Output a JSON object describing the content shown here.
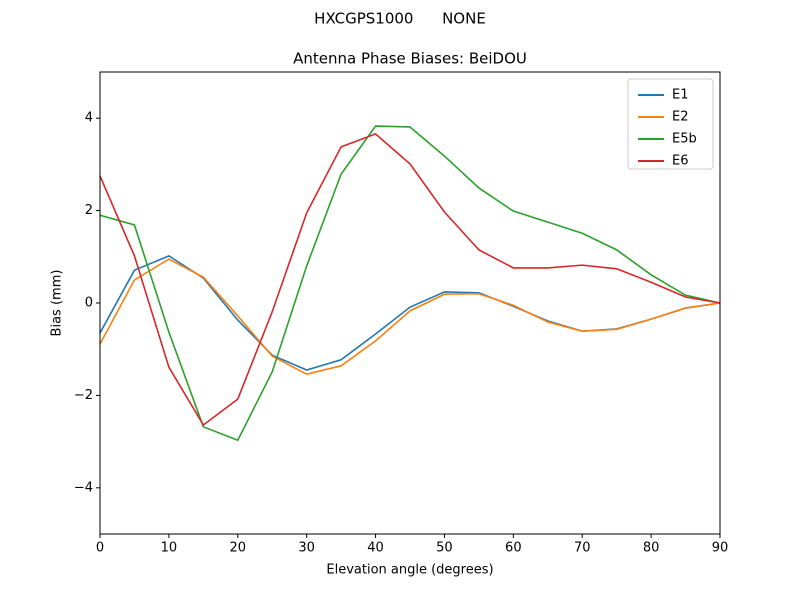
{
  "chart_data": {
    "type": "line",
    "suptitle": "HXCGPS1000      NONE",
    "title": "Antenna Phase Biases: BeiDOU",
    "x_label": "Elevation angle (degrees)",
    "y_label": "Bias (mm)",
    "x": [
      0,
      5,
      10,
      15,
      20,
      25,
      30,
      35,
      40,
      45,
      50,
      55,
      60,
      65,
      70,
      75,
      80,
      85,
      90
    ],
    "series": [
      {
        "name": "E1",
        "color": "#1f77b4",
        "values": [
          -0.65,
          0.71,
          1.02,
          0.54,
          -0.37,
          -1.13,
          -1.45,
          -1.23,
          -0.67,
          -0.09,
          0.24,
          0.22,
          -0.07,
          -0.39,
          -0.61,
          -0.56,
          -0.35,
          -0.11,
          0
        ]
      },
      {
        "name": "E2",
        "color": "#ff7f0e",
        "values": [
          -0.89,
          0.5,
          0.95,
          0.56,
          -0.28,
          -1.15,
          -1.54,
          -1.36,
          -0.82,
          -0.17,
          0.19,
          0.2,
          -0.05,
          -0.41,
          -0.61,
          -0.57,
          -0.35,
          -0.11,
          0
        ]
      },
      {
        "name": "E5b",
        "color": "#2ca02c",
        "values": [
          1.9,
          1.69,
          -0.63,
          -2.68,
          -2.97,
          -1.49,
          0.8,
          2.79,
          3.83,
          3.81,
          3.18,
          2.49,
          1.99,
          1.75,
          1.51,
          1.15,
          0.61,
          0.17,
          0
        ]
      },
      {
        "name": "E6",
        "color": "#d62728",
        "values": [
          2.75,
          1.02,
          -1.39,
          -2.64,
          -2.08,
          -0.19,
          1.95,
          3.38,
          3.66,
          3.01,
          1.97,
          1.15,
          0.76,
          0.76,
          0.82,
          0.74,
          0.45,
          0.13,
          0
        ]
      }
    ],
    "xlim": [
      0,
      90
    ],
    "xticks": [
      0,
      10,
      20,
      30,
      40,
      50,
      60,
      70,
      80,
      90
    ],
    "ylim": [
      -5,
      5
    ],
    "yticks": [
      {
        "value": -4,
        "label": "−4"
      },
      {
        "value": -2,
        "label": "−2"
      },
      0,
      2,
      4
    ],
    "legend": "upper right",
    "grid": false
  }
}
